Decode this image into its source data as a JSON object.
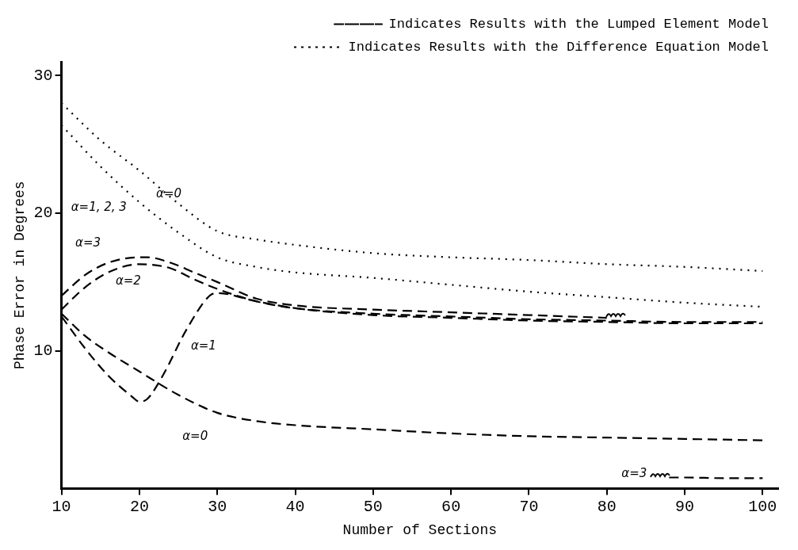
{
  "chart_data": {
    "type": "line",
    "xlabel": "Number of Sections",
    "ylabel": "Phase Error in Degrees",
    "xlim": [
      10,
      102
    ],
    "ylim": [
      0,
      31
    ],
    "xticks": [
      10,
      20,
      30,
      40,
      50,
      60,
      70,
      80,
      90,
      100
    ],
    "yticks": [
      10,
      20,
      30
    ],
    "grid": false,
    "legend": "top right",
    "marker": "none",
    "series": [
      {
        "name": "Indicates Results with the Lumped Element Model",
        "color": "#000000",
        "line_style": "dashed",
        "x": [
          10,
          13,
          16,
          20,
          25,
          30,
          35,
          40,
          50,
          60,
          70,
          80,
          90,
          100
        ],
        "values": [
          12.7,
          11.1,
          9.9,
          8.5,
          6.8,
          5.5,
          4.9,
          4.6,
          4.3,
          4.0,
          3.8,
          3.7,
          3.6,
          3.5
        ]
      },
      {
        "color": "#000000",
        "line_style": "dashed",
        "x": [
          10,
          13,
          16,
          19,
          20,
          21,
          23,
          26,
          29,
          30,
          35,
          40,
          50,
          60,
          70,
          80,
          90,
          100
        ],
        "values": [
          12.5,
          10.2,
          8.2,
          6.7,
          6.3,
          6.5,
          8.2,
          11.5,
          14.0,
          14.2,
          13.6,
          13.1,
          12.6,
          12.4,
          12.2,
          12.1,
          12.0,
          12.0
        ]
      },
      {
        "color": "#000000",
        "line_style": "dashed",
        "x": [
          10,
          13,
          16,
          20,
          24,
          27,
          30,
          35,
          40,
          50,
          60,
          70,
          80,
          90,
          100
        ],
        "values": [
          13.0,
          14.6,
          15.7,
          16.3,
          16.0,
          15.2,
          14.5,
          13.6,
          13.1,
          12.7,
          12.5,
          12.3,
          12.2,
          12.1,
          12.1
        ]
      },
      {
        "color": "#000000",
        "line_style": "dashed",
        "x": [
          10,
          13,
          16,
          20,
          21,
          24,
          27,
          30,
          35,
          40,
          50,
          60,
          70,
          80,
          86,
          88,
          90,
          95,
          100
        ],
        "values": [
          14.0,
          15.5,
          16.4,
          16.8,
          16.8,
          16.4,
          15.7,
          15.0,
          13.8,
          13.3,
          13.0,
          12.8,
          12.6,
          12.4,
          null,
          0.8,
          0.8,
          0.75,
          0.75
        ]
      },
      {
        "name": "Indicates Results with the Difference Equation Model",
        "color": "#000000",
        "line_style": "dotted",
        "x": [
          10,
          15,
          20,
          25,
          30,
          35,
          40,
          50,
          60,
          70,
          80,
          90,
          100
        ],
        "values": [
          28.0,
          25.3,
          23.1,
          20.7,
          18.7,
          18.1,
          17.7,
          17.1,
          16.8,
          16.6,
          16.3,
          16.1,
          15.8
        ]
      },
      {
        "color": "#000000",
        "line_style": "dotted",
        "x": [
          10,
          15,
          20,
          25,
          30,
          35,
          40,
          50,
          60,
          70,
          80,
          90,
          100
        ],
        "values": [
          26.4,
          23.4,
          20.8,
          18.6,
          16.8,
          16.1,
          15.7,
          15.3,
          14.8,
          14.3,
          13.9,
          13.5,
          13.2
        ]
      }
    ],
    "annotations": [
      {
        "text": "α=0",
        "x": 25,
        "y": 20.7
      },
      {
        "text": "α=1, 2, 3",
        "x": 15,
        "y": 23.4
      },
      {
        "text": "α=3",
        "x": 13,
        "y": 15.5
      },
      {
        "text": "α=2",
        "x": 20,
        "y": 16.3
      },
      {
        "text": "α=1",
        "x": 26,
        "y": 11.5
      },
      {
        "text": "α=0",
        "x": 30,
        "y": 5.5
      },
      {
        "text": "α=3",
        "x": 88,
        "y": 0.8
      }
    ]
  }
}
